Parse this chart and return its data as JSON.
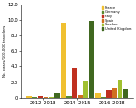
{
  "periods": [
    "2012–2013",
    "2014–2015",
    "2016–2018"
  ],
  "countries": [
    "France",
    "Germany",
    "Italy",
    "Spain",
    "Sweden",
    "United Kingdom"
  ],
  "colors": [
    "#f0c030",
    "#5a8a30",
    "#c03020",
    "#d07020",
    "#a0c030",
    "#406820"
  ],
  "values": [
    [
      0.25,
      9.6,
      0.65
    ],
    [
      0.1,
      0.15,
      0.1
    ],
    [
      0.15,
      3.8,
      1.05
    ],
    [
      0.05,
      0.35,
      1.3
    ],
    [
      0.05,
      2.15,
      2.25
    ],
    [
      0.65,
      9.85,
      1.15
    ]
  ],
  "ylim": [
    0,
    12.0
  ],
  "yticks": [
    0,
    2.0,
    4.0,
    6.0,
    8.0,
    10.0,
    12.0
  ],
  "ylabel": "No. cases/100,000 travelers"
}
